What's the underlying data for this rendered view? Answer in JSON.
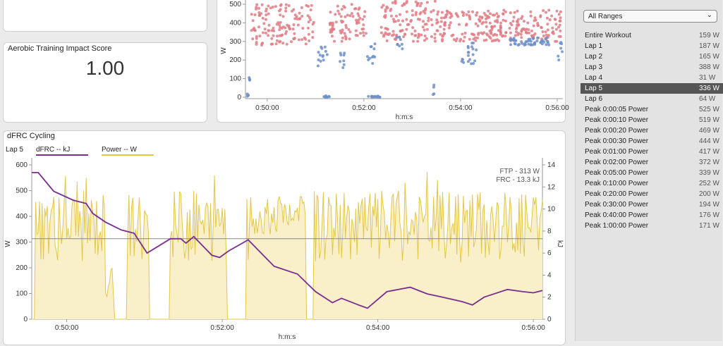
{
  "top_left_panel": {},
  "aerobic": {
    "title": "Aerobic Training Impact Score",
    "value": "1.00"
  },
  "top_chart": {
    "y_axis_label": "W",
    "x_axis_label": "h:m:s",
    "y_ticks": [
      "500",
      "400",
      "300",
      "200",
      "100",
      "0"
    ],
    "x_ticks": [
      "0:50:00",
      "0:52:00",
      "0:54:00",
      "0:56:00"
    ],
    "colors": {
      "above": "#e07c85",
      "below": "#6d8fca"
    }
  },
  "dfrc": {
    "title": "dFRC Cycling",
    "lap_label": "Lap 5",
    "legend": [
      {
        "label": "dFRC  -- kJ",
        "color": "#7a2e8e"
      },
      {
        "label": "Power  -- W",
        "color": "#e2c74a"
      }
    ],
    "ftp_label": "FTP - 313 W",
    "frc_label": "FRC - 13.3 kJ",
    "y_left_label": "W",
    "y_right_label": "kJ",
    "x_axis_label": "h:m:s",
    "y_left_ticks": [
      "600",
      "500",
      "400",
      "300",
      "200",
      "100",
      "0"
    ],
    "y_right_ticks": [
      "14",
      "12",
      "10",
      "8",
      "6",
      "4",
      "2",
      "0"
    ],
    "x_ticks": [
      "0:50:00",
      "0:52:00",
      "0:54:00",
      "0:56:00"
    ],
    "colors": {
      "power_fill": "#f9efc9",
      "power_line": "#e2c74a",
      "dfrc_line": "#7a2e8e",
      "ftp_line": "#888888"
    }
  },
  "sidebar": {
    "select_value": "All Ranges",
    "ranges": [
      {
        "label": "Entire Workout",
        "value": "159 W"
      },
      {
        "label": "Lap 1",
        "value": "187 W"
      },
      {
        "label": "Lap 2",
        "value": "165 W"
      },
      {
        "label": "Lap 3",
        "value": "388 W"
      },
      {
        "label": "Lap 4",
        "value": "31 W"
      },
      {
        "label": "Lap 5",
        "value": "336 W",
        "selected": true
      },
      {
        "label": "Lap 6",
        "value": "64 W"
      },
      {
        "label": "Peak 0:00:05 Power",
        "value": "525 W"
      },
      {
        "label": "Peak 0:00:10 Power",
        "value": "519 W"
      },
      {
        "label": "Peak 0:00:20 Power",
        "value": "469 W"
      },
      {
        "label": "Peak 0:00:30 Power",
        "value": "444 W"
      },
      {
        "label": "Peak 0:01:00 Power",
        "value": "417 W"
      },
      {
        "label": "Peak 0:02:00 Power",
        "value": "372 W"
      },
      {
        "label": "Peak 0:05:00 Power",
        "value": "339 W"
      },
      {
        "label": "Peak 0:10:00 Power",
        "value": "252 W"
      },
      {
        "label": "Peak 0:20:00 Power",
        "value": "200 W"
      },
      {
        "label": "Peak 0:30:00 Power",
        "value": "194 W"
      },
      {
        "label": "Peak 0:40:00 Power",
        "value": "176 W"
      },
      {
        "label": "Peak 1:00:00 Power",
        "value": "171 W"
      }
    ]
  }
}
